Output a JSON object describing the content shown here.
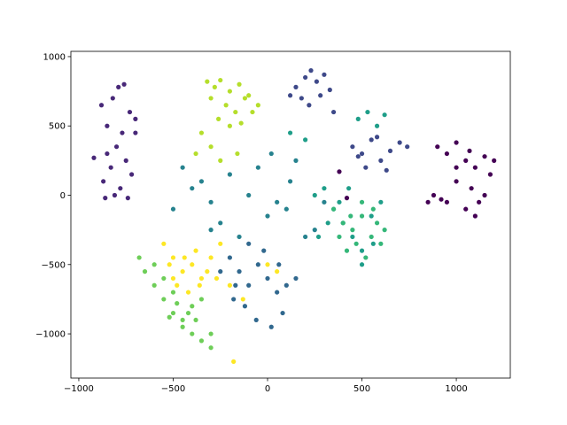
{
  "chart_data": {
    "type": "scatter",
    "xlim": [
      -1042,
      1286
    ],
    "ylim": [
      -1319,
      1038
    ],
    "xticks": [
      {
        "value": -1000,
        "label": "−1000"
      },
      {
        "value": -500,
        "label": "−500"
      },
      0,
      500,
      1000
    ],
    "yticks": [
      {
        "value": -1000,
        "label": "−1000"
      },
      {
        "value": -500,
        "label": "−500"
      },
      0,
      500,
      1000
    ],
    "series": [
      {
        "color": "#440154",
        "x": [
          900,
          950,
          1000,
          1050,
          1100,
          1150,
          1180,
          1000,
          1080,
          1120,
          950,
          1050,
          1100,
          1000,
          1150,
          920,
          1070,
          380,
          420,
          1200,
          850,
          880
        ],
        "y": [
          350,
          300,
          380,
          250,
          200,
          280,
          150,
          100,
          50,
          -50,
          -50,
          -100,
          -150,
          200,
          0,
          -30,
          320,
          170,
          -20,
          250,
          -50,
          0
        ]
      },
      {
        "color": "#482878",
        "x": [
          -880,
          -850,
          -820,
          -790,
          -760,
          -730,
          -700,
          -850,
          -800,
          -750,
          -720,
          -870,
          -830,
          -780,
          -740,
          -810,
          -860,
          -770,
          -700,
          -920
        ],
        "y": [
          650,
          500,
          700,
          780,
          800,
          600,
          450,
          300,
          350,
          250,
          150,
          100,
          200,
          50,
          -20,
          0,
          -20,
          450,
          550,
          270
        ]
      },
      {
        "color": "#3e4989",
        "x": [
          150,
          200,
          230,
          260,
          300,
          330,
          180,
          220,
          280,
          350,
          120,
          450,
          500,
          550,
          600,
          650,
          700,
          520,
          580,
          630,
          480,
          740
        ],
        "y": [
          780,
          850,
          900,
          820,
          870,
          760,
          700,
          650,
          720,
          600,
          720,
          350,
          300,
          400,
          250,
          320,
          380,
          200,
          420,
          180,
          280,
          350
        ]
      },
      {
        "color": "#31688e",
        "x": [
          -200,
          -150,
          -100,
          -50,
          0,
          50,
          100,
          -250,
          -180,
          -120,
          -60,
          20,
          80,
          150,
          -20,
          -100,
          -170,
          60
        ],
        "y": [
          -450,
          -550,
          -650,
          -500,
          -600,
          -700,
          -650,
          -550,
          -750,
          -800,
          -900,
          -950,
          -850,
          -600,
          -400,
          -350,
          -650,
          -500
        ]
      },
      {
        "color": "#26828e",
        "x": [
          -500,
          -400,
          -350,
          -300,
          -200,
          -100,
          0,
          100,
          200,
          300,
          -250,
          -150,
          -50,
          50,
          150,
          250,
          -450,
          -300,
          20,
          120
        ],
        "y": [
          -100,
          50,
          100,
          -50,
          150,
          0,
          -150,
          -100,
          -300,
          -50,
          -200,
          -300,
          200,
          -50,
          250,
          -250,
          200,
          -250,
          300,
          100
        ]
      },
      {
        "color": "#1f9e89",
        "x": [
          250,
          300,
          350,
          400,
          450,
          500,
          550,
          600,
          270,
          320,
          380,
          430,
          480,
          530,
          580,
          620,
          500,
          560,
          200,
          120
        ],
        "y": [
          0,
          50,
          -100,
          -200,
          -300,
          -400,
          -150,
          -50,
          -300,
          -200,
          -50,
          50,
          550,
          600,
          500,
          580,
          -500,
          -350,
          400,
          450
        ]
      },
      {
        "color": "#35b779",
        "x": [
          350,
          400,
          450,
          500,
          550,
          600,
          420,
          470,
          520,
          580,
          380,
          440,
          500,
          560,
          620
        ],
        "y": [
          -100,
          -200,
          -250,
          -150,
          -300,
          -350,
          -400,
          -350,
          -450,
          -200,
          -300,
          -150,
          -50,
          -100,
          -250
        ]
      },
      {
        "color": "#6ece58",
        "x": [
          -650,
          -600,
          -550,
          -500,
          -450,
          -400,
          -350,
          -550,
          -500,
          -450,
          -400,
          -350,
          -300,
          -600,
          -520,
          -420,
          -680,
          -480,
          -380,
          -300
        ],
        "y": [
          -550,
          -650,
          -750,
          -850,
          -900,
          -800,
          -750,
          -600,
          -700,
          -950,
          -1000,
          -1050,
          -1100,
          -500,
          -880,
          -850,
          -450,
          -780,
          -900,
          -1000
        ]
      },
      {
        "color": "#b5de2b",
        "x": [
          -320,
          -280,
          -250,
          -200,
          -150,
          -100,
          -50,
          -300,
          -220,
          -170,
          -120,
          -80,
          -260,
          -200,
          -140,
          -350,
          -380,
          -300,
          -160,
          -250
        ],
        "y": [
          820,
          780,
          830,
          750,
          800,
          720,
          650,
          700,
          650,
          600,
          700,
          600,
          550,
          500,
          520,
          450,
          300,
          350,
          300,
          250
        ]
      },
      {
        "color": "#fde725",
        "x": [
          -550,
          -500,
          -450,
          -400,
          -350,
          -300,
          -250,
          -480,
          -420,
          -380,
          -320,
          -270,
          -520,
          -440,
          -360,
          -500,
          -200,
          -130,
          0,
          50,
          -180
        ],
        "y": [
          -350,
          -450,
          -550,
          -500,
          -600,
          -450,
          -350,
          -650,
          -700,
          -400,
          -550,
          -600,
          -500,
          -450,
          -650,
          -600,
          -650,
          -750,
          -500,
          -550,
          -1200
        ]
      }
    ]
  }
}
